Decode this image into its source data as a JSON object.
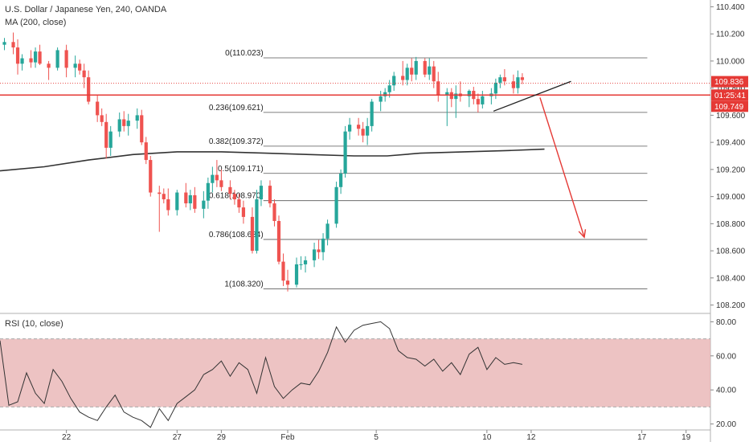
{
  "header": {
    "symbol_title": "U.S. Dollar / Japanese Yen, 240, OANDA",
    "ma_label": "MA (200, close)",
    "rsi_label": "RSI (10, close)"
  },
  "colors": {
    "up": "#26a69a",
    "down": "#ef5350",
    "ma_line": "#333333",
    "price_line": "#e53935",
    "rsi_band": "#e8b4b4",
    "fib_line": "#555555",
    "arrow": "#e53935",
    "trend_line": "#222222"
  },
  "chart_data": [
    {
      "type": "candlestick",
      "price_axis": {
        "ticks": [
          110.4,
          110.2,
          110.0,
          109.8,
          109.6,
          109.4,
          109.2,
          109.0,
          108.8,
          108.6,
          108.4,
          108.2
        ],
        "tick_labels": [
          "110.400",
          "110.200",
          "110.000",
          "109.800",
          "109.600",
          "109.400",
          "109.200",
          "109.000",
          "108.800",
          "108.600",
          "108.400",
          "108.200"
        ],
        "ylim": [
          108.15,
          110.45
        ]
      },
      "time_axis": {
        "labels": [
          {
            "text": "22",
            "day": 22
          },
          {
            "text": "27",
            "day": 27
          },
          {
            "text": "29",
            "day": 29
          },
          {
            "text": "Feb",
            "day": 32
          },
          {
            "text": "5",
            "day": 36
          },
          {
            "text": "10",
            "day": 41
          },
          {
            "text": "12",
            "day": 43
          },
          {
            "text": "17",
            "day": 48
          },
          {
            "text": "19",
            "day": 50
          }
        ],
        "xlim": [
          19.0,
          51.1
        ]
      },
      "current_price": {
        "value": 109.749,
        "label": "109.749",
        "countdown": "01:25:41"
      },
      "last_close_label": {
        "value": 109.836,
        "label": "109.836"
      },
      "fib_levels": [
        {
          "ratio": "0",
          "price": 110.023,
          "label": "0(110.023)"
        },
        {
          "ratio": "0.236",
          "price": 109.621,
          "label": "0.236(109.621)"
        },
        {
          "ratio": "0.382",
          "price": 109.372,
          "label": "0.382(109.372)"
        },
        {
          "ratio": "0.5",
          "price": 109.171,
          "label": "0.5(109.171)"
        },
        {
          "ratio": "0.618",
          "price": 108.97,
          "label": "0.618(108.970)"
        },
        {
          "ratio": "0.786",
          "price": 108.684,
          "label": "0.786(108.684)"
        },
        {
          "ratio": "1",
          "price": 108.32,
          "label": "1(108.320)"
        }
      ],
      "ma200": [
        [
          19.0,
          109.19
        ],
        [
          21.0,
          109.22
        ],
        [
          23.0,
          109.27
        ],
        [
          25.0,
          109.31
        ],
        [
          27.0,
          109.33
        ],
        [
          29.0,
          109.33
        ],
        [
          31.0,
          109.32
        ],
        [
          33.0,
          109.31
        ],
        [
          35.0,
          109.3
        ],
        [
          36.5,
          109.3
        ],
        [
          38.0,
          109.32
        ],
        [
          40.0,
          109.33
        ],
        [
          42.0,
          109.34
        ],
        [
          43.6,
          109.35
        ]
      ],
      "trend_line": [
        [
          41.3,
          109.63
        ],
        [
          44.8,
          109.85
        ]
      ],
      "arrow": {
        "from": [
          43.4,
          109.73
        ],
        "to": [
          45.4,
          108.7
        ]
      },
      "candles": [
        [
          19.2,
          110.12,
          110.17,
          110.08,
          110.14
        ],
        [
          19.6,
          110.14,
          110.21,
          110.05,
          110.1
        ],
        [
          19.8,
          110.1,
          110.16,
          109.9,
          109.98
        ],
        [
          20.0,
          109.98,
          110.05,
          109.93,
          110.02
        ],
        [
          20.4,
          110.02,
          110.08,
          109.95,
          109.99
        ],
        [
          20.6,
          109.99,
          110.1,
          109.95,
          110.07
        ],
        [
          20.8,
          110.07,
          110.12,
          109.97,
          109.98
        ],
        [
          21.2,
          109.98,
          110.0,
          109.86,
          109.95
        ],
        [
          21.6,
          109.95,
          110.1,
          109.93,
          110.08
        ],
        [
          22.0,
          110.08,
          110.12,
          109.88,
          109.95
        ],
        [
          22.4,
          109.95,
          110.04,
          109.88,
          109.98
        ],
        [
          22.6,
          109.98,
          110.01,
          109.9,
          109.93
        ],
        [
          22.8,
          109.93,
          109.98,
          109.8,
          109.88
        ],
        [
          23.0,
          109.88,
          109.93,
          109.68,
          109.7
        ],
        [
          23.4,
          109.7,
          109.75,
          109.55,
          109.6
        ],
        [
          23.6,
          109.6,
          109.65,
          109.52,
          109.55
        ],
        [
          23.8,
          109.55,
          109.61,
          109.28,
          109.36
        ],
        [
          24.0,
          109.36,
          109.52,
          109.3,
          109.48
        ],
        [
          24.4,
          109.48,
          109.62,
          109.44,
          109.57
        ],
        [
          24.6,
          109.57,
          109.63,
          109.48,
          109.52
        ],
        [
          24.8,
          109.52,
          109.61,
          109.45,
          109.56
        ],
        [
          25.2,
          109.56,
          109.65,
          109.5,
          109.6
        ],
        [
          25.4,
          109.6,
          109.64,
          109.38,
          109.4
        ],
        [
          25.6,
          109.4,
          109.44,
          109.24,
          109.27
        ],
        [
          25.8,
          109.27,
          109.3,
          109.0,
          109.03
        ],
        [
          26.2,
          109.03,
          109.08,
          108.74,
          109.02
        ],
        [
          26.4,
          109.02,
          109.06,
          108.95,
          108.98
        ],
        [
          26.6,
          108.98,
          109.06,
          108.86,
          108.9
        ],
        [
          27.0,
          108.9,
          109.05,
          108.86,
          109.03
        ],
        [
          27.4,
          109.03,
          109.1,
          108.92,
          108.95
        ],
        [
          27.6,
          108.95,
          109.05,
          108.9,
          109.01
        ],
        [
          27.8,
          109.01,
          109.07,
          108.88,
          108.91
        ],
        [
          28.2,
          108.91,
          109.04,
          108.84,
          108.97
        ],
        [
          28.4,
          108.97,
          109.14,
          108.91,
          109.1
        ],
        [
          28.6,
          109.1,
          109.22,
          109.03,
          109.16
        ],
        [
          28.8,
          109.16,
          109.27,
          109.07,
          109.12
        ],
        [
          29.0,
          109.12,
          109.2,
          109.04,
          109.07
        ],
        [
          29.4,
          109.07,
          109.12,
          108.98,
          109.02
        ],
        [
          29.6,
          109.02,
          109.05,
          108.94,
          108.98
        ],
        [
          29.8,
          108.98,
          109.02,
          108.88,
          108.92
        ],
        [
          30.0,
          108.92,
          108.97,
          108.8,
          108.85
        ],
        [
          30.4,
          108.85,
          108.92,
          108.58,
          108.6
        ],
        [
          30.6,
          108.6,
          109.05,
          108.58,
          108.98
        ],
        [
          30.8,
          108.98,
          109.12,
          108.93,
          109.08
        ],
        [
          31.2,
          109.08,
          109.12,
          108.92,
          108.95
        ],
        [
          31.4,
          108.95,
          108.98,
          108.78,
          108.82
        ],
        [
          31.6,
          108.82,
          108.86,
          108.5,
          108.52
        ],
        [
          31.8,
          108.52,
          108.58,
          108.34,
          108.38
        ],
        [
          32.0,
          108.38,
          108.46,
          108.3,
          108.35
        ],
        [
          32.4,
          108.35,
          108.55,
          108.33,
          108.5
        ],
        [
          32.6,
          108.5,
          108.56,
          108.46,
          108.5
        ],
        [
          32.8,
          108.5,
          108.56,
          108.44,
          108.53
        ],
        [
          33.2,
          108.53,
          108.66,
          108.48,
          108.61
        ],
        [
          33.4,
          108.61,
          108.68,
          108.54,
          108.59
        ],
        [
          33.6,
          108.59,
          108.73,
          108.53,
          108.69
        ],
        [
          33.8,
          108.69,
          108.83,
          108.64,
          108.8
        ],
        [
          34.2,
          108.8,
          109.11,
          108.77,
          109.07
        ],
        [
          34.4,
          109.07,
          109.2,
          109.02,
          109.17
        ],
        [
          34.6,
          109.17,
          109.52,
          109.14,
          109.48
        ],
        [
          34.8,
          109.48,
          109.58,
          109.42,
          109.53
        ],
        [
          35.2,
          109.53,
          109.58,
          109.45,
          109.5
        ],
        [
          35.4,
          109.5,
          109.55,
          109.4,
          109.45
        ],
        [
          35.6,
          109.45,
          109.58,
          109.38,
          109.52
        ],
        [
          35.8,
          109.52,
          109.72,
          109.48,
          109.7
        ],
        [
          36.2,
          109.7,
          109.78,
          109.63,
          109.74
        ],
        [
          36.4,
          109.74,
          109.8,
          109.7,
          109.77
        ],
        [
          36.6,
          109.77,
          109.86,
          109.73,
          109.82
        ],
        [
          36.8,
          109.82,
          109.92,
          109.78,
          109.89
        ],
        [
          37.2,
          109.89,
          110.0,
          109.82,
          109.86
        ],
        [
          37.4,
          109.86,
          109.98,
          109.82,
          109.95
        ],
        [
          37.6,
          109.95,
          110.02,
          109.85,
          109.9
        ],
        [
          37.8,
          109.9,
          110.03,
          109.86,
          110.0
        ],
        [
          38.2,
          110.0,
          110.02,
          109.88,
          109.9
        ],
        [
          38.4,
          109.9,
          110.02,
          109.86,
          109.96
        ],
        [
          38.6,
          109.96,
          110.0,
          109.8,
          109.85
        ],
        [
          38.8,
          109.85,
          109.92,
          109.7,
          109.75
        ],
        [
          39.2,
          109.75,
          109.8,
          109.52,
          109.77
        ],
        [
          39.4,
          109.77,
          109.8,
          109.66,
          109.72
        ],
        [
          39.6,
          109.72,
          109.82,
          109.58,
          109.76
        ],
        [
          39.8,
          109.76,
          109.85,
          109.7,
          109.74
        ],
        [
          40.2,
          109.74,
          109.79,
          109.66,
          109.78
        ],
        [
          40.4,
          109.78,
          109.81,
          109.68,
          109.72
        ],
        [
          40.6,
          109.72,
          109.76,
          109.62,
          109.68
        ],
        [
          40.8,
          109.68,
          109.78,
          109.65,
          109.74
        ],
        [
          41.2,
          109.74,
          109.8,
          109.68,
          109.76
        ],
        [
          41.4,
          109.76,
          109.87,
          109.72,
          109.84
        ],
        [
          41.6,
          109.84,
          109.9,
          109.8,
          109.88
        ],
        [
          41.8,
          109.88,
          109.94,
          109.82,
          109.85
        ],
        [
          42.2,
          109.85,
          109.9,
          109.76,
          109.8
        ],
        [
          42.4,
          109.8,
          109.93,
          109.76,
          109.88
        ],
        [
          42.6,
          109.88,
          109.91,
          109.83,
          109.86
        ]
      ]
    },
    {
      "type": "line",
      "title": "RSI (10, close)",
      "y_ticks": [
        80,
        60,
        40,
        20
      ],
      "y_tick_labels": [
        "80.00",
        "60.00",
        "40.00",
        "20.00"
      ],
      "ylim": [
        16.5,
        83.5
      ],
      "band": [
        30,
        70
      ],
      "series": [
        {
          "x": [
            19.0,
            19.4,
            19.8,
            20.2,
            20.6,
            21.0,
            21.4,
            21.8,
            22.2,
            22.6,
            23.0,
            23.4,
            23.8,
            24.2,
            24.6,
            25.0,
            25.4,
            25.8,
            26.2,
            26.6,
            27.0,
            27.4,
            27.8,
            28.2,
            28.6,
            29.0,
            29.4,
            29.8,
            30.2,
            30.6,
            31.0,
            31.4,
            31.8,
            32.2,
            32.6,
            33.0,
            33.4,
            33.8,
            34.2,
            34.6,
            35.0,
            35.4,
            35.8,
            36.2,
            36.6,
            37.0,
            37.4,
            37.8,
            38.2,
            38.6,
            39.0,
            39.4,
            39.8,
            40.2,
            40.6,
            41.0,
            41.4,
            41.8,
            42.2,
            42.6
          ],
          "y": [
            69,
            31,
            33,
            50,
            38,
            32,
            52,
            45,
            35,
            27,
            24,
            22,
            30,
            37,
            27,
            24,
            22,
            18,
            29,
            22,
            32,
            36,
            40,
            49,
            52,
            57,
            48,
            56,
            52,
            38,
            59,
            42,
            35,
            40,
            44,
            43,
            51,
            62,
            77,
            68,
            75,
            78,
            79,
            80,
            76,
            63,
            59,
            58,
            54,
            58,
            51,
            56,
            49,
            61,
            65,
            52,
            59,
            55,
            56,
            55
          ]
        }
      ]
    }
  ]
}
